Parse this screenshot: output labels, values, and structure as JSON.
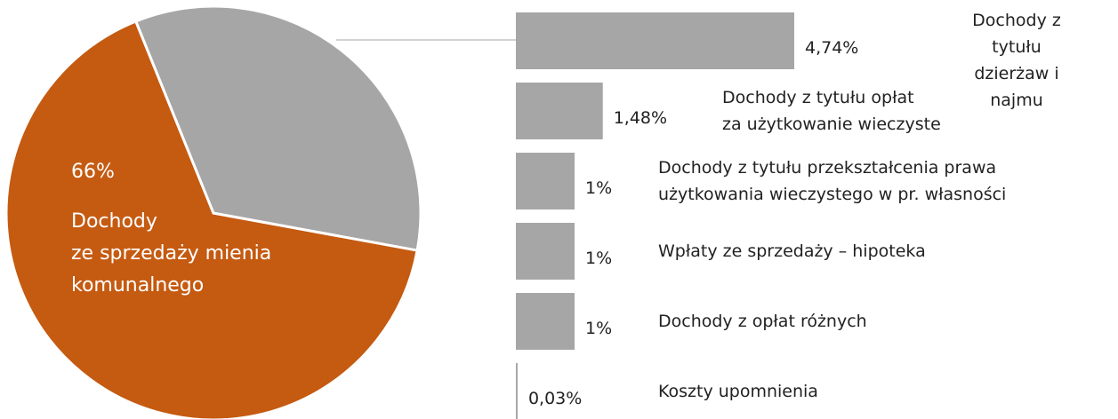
{
  "chart_data": [
    {
      "type": "pie",
      "categories": [
        "Dochody\nze sprzedaży mienia\nkomunalnego",
        null
      ],
      "values": [
        66,
        34
      ],
      "value_labels": [
        "66%",
        null
      ],
      "colors": [
        "#c55a11",
        "#a6a6a6"
      ]
    },
    {
      "type": "bar",
      "orientation": "horizontal",
      "categories": [
        "Dochody z tytułu\ndzierżaw i najmu",
        "Dochody z tytułu opłat\nza użytkowanie  wieczyste",
        "Dochody z tytułu przekształcenia prawa\nużytkowania wieczystego w pr. własności",
        "Wpłaty ze sprzedaży – hipoteka",
        "Dochody z opłat różnych",
        "Koszty upomnienia"
      ],
      "values": [
        4.74,
        1.48,
        1,
        1,
        1,
        0.03
      ],
      "value_labels": [
        "4,74%",
        "1,48%",
        "1%",
        "1%",
        "1%",
        "0,03%"
      ],
      "color": "#a6a6a6"
    }
  ]
}
